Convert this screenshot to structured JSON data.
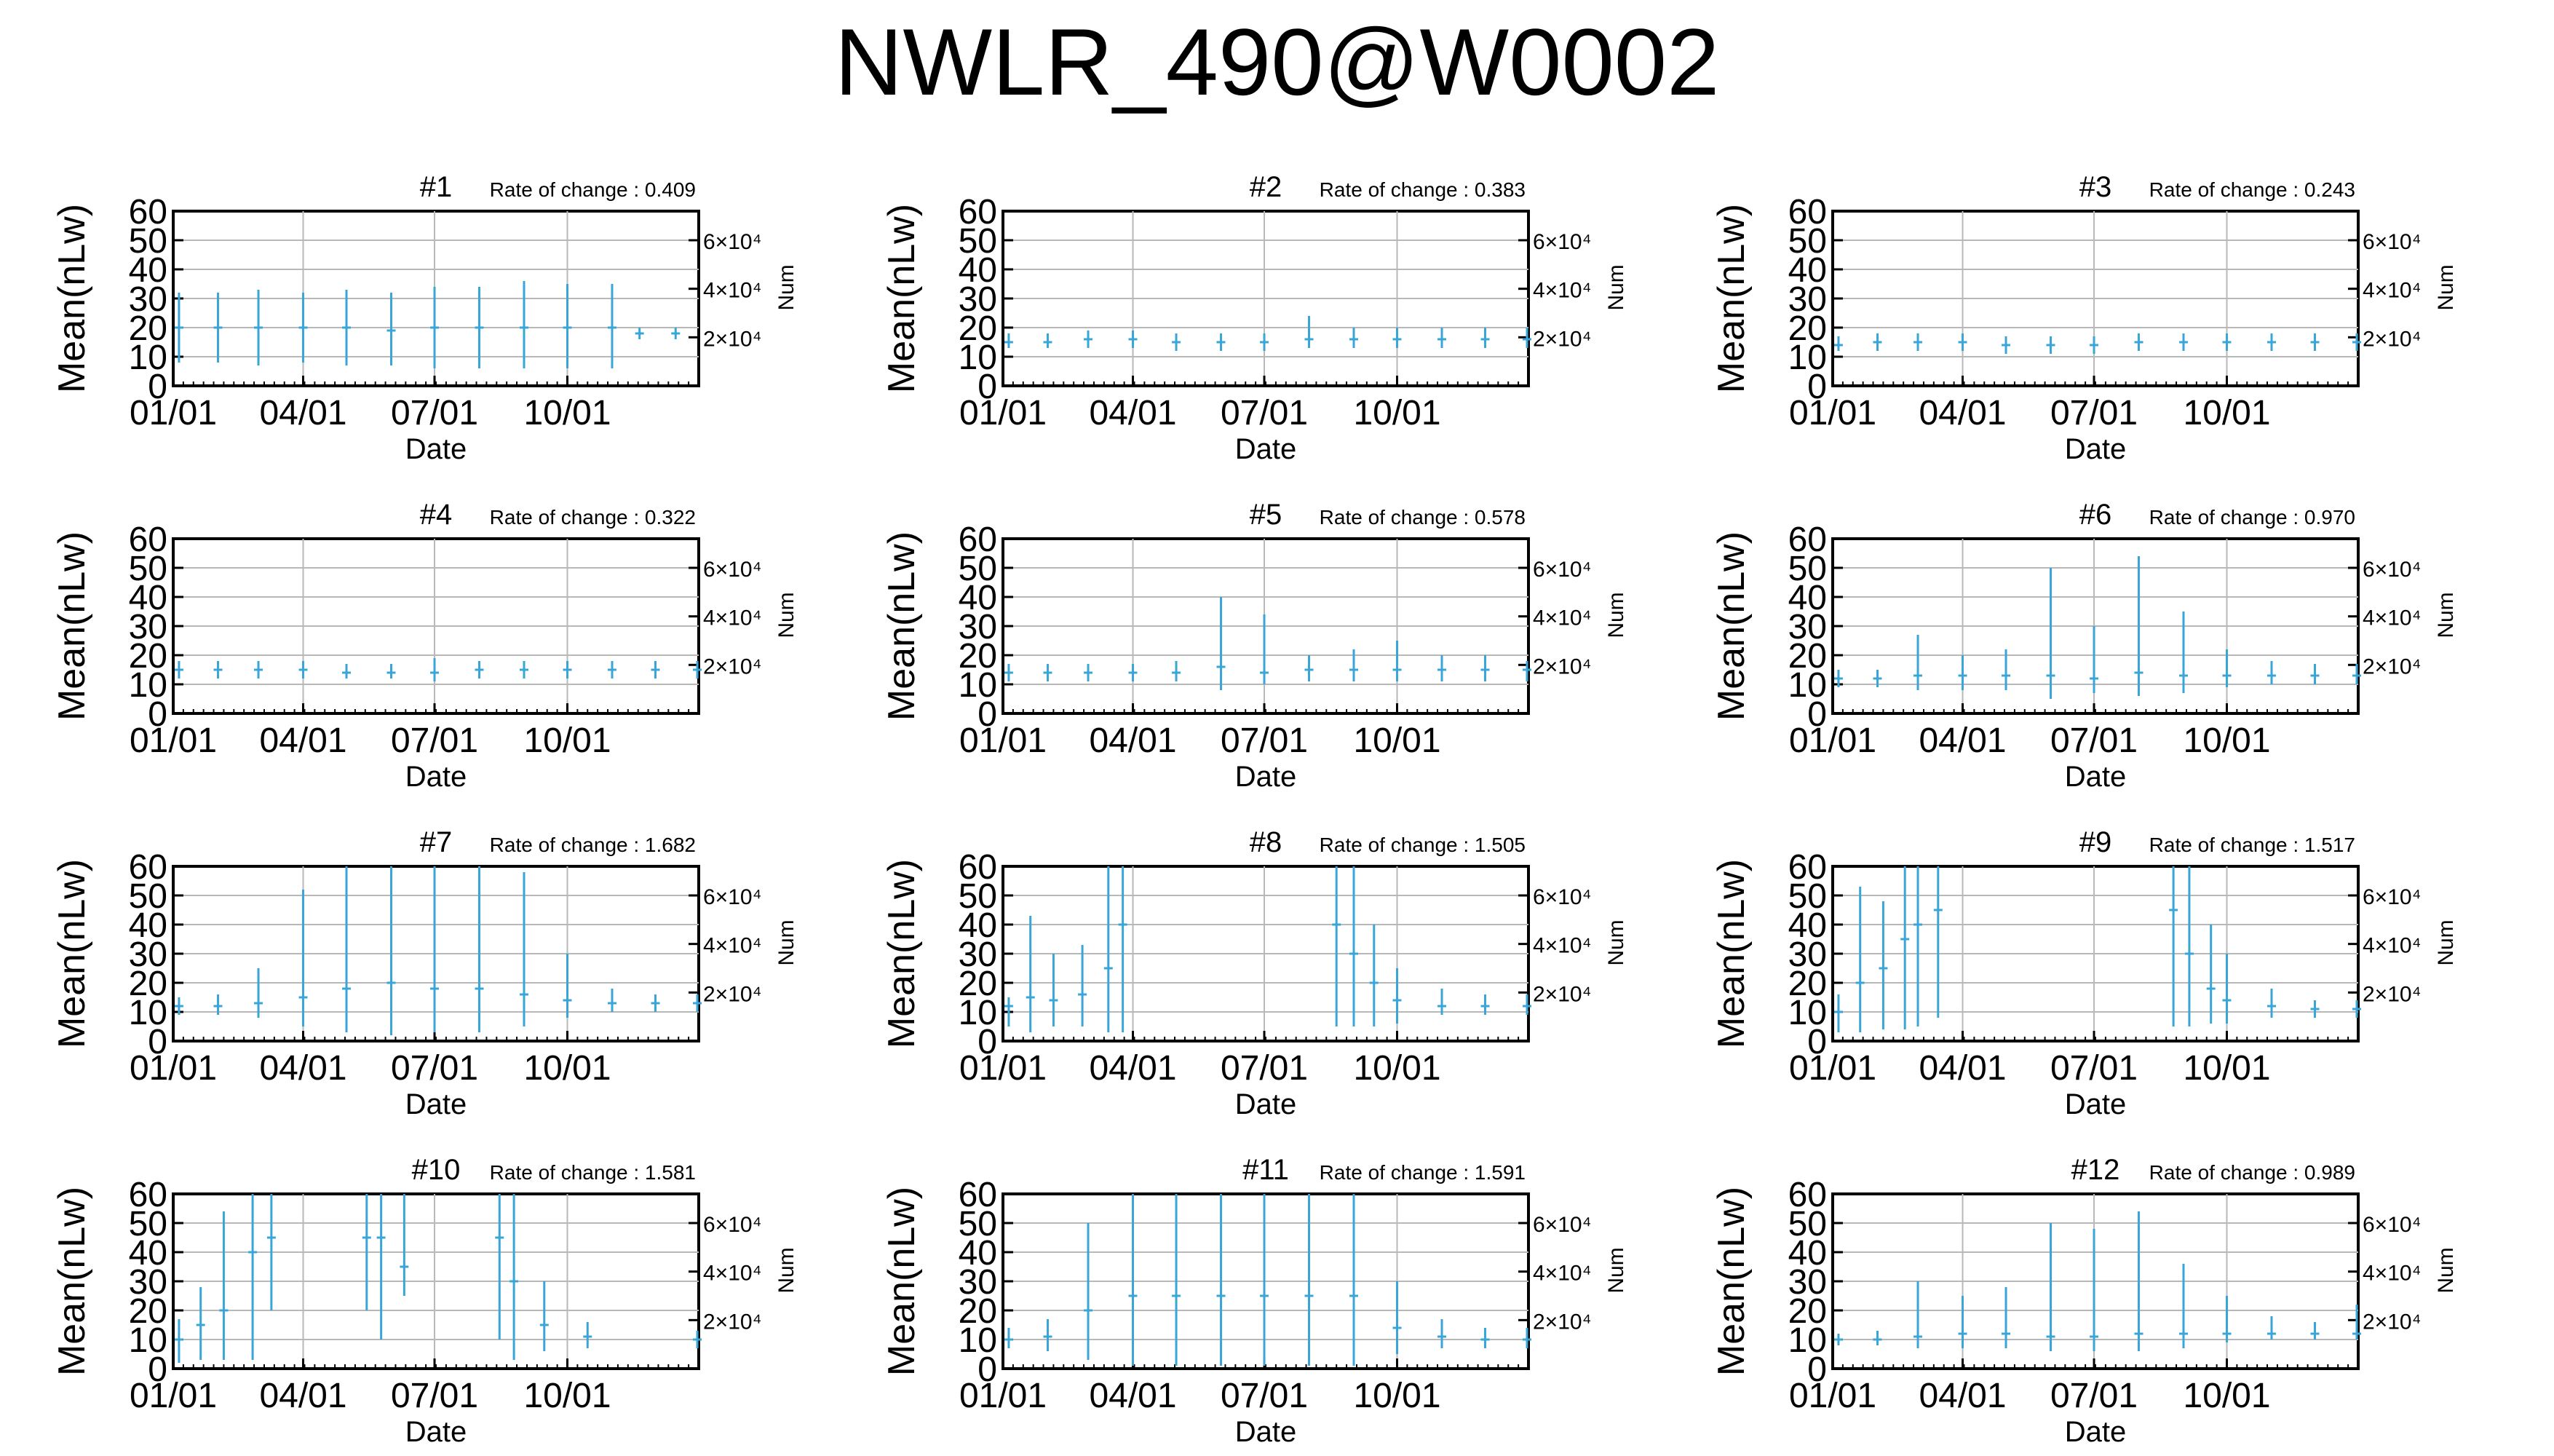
{
  "title": "NWLR_490@W0002",
  "colors": {
    "series": "#3aa6d8",
    "axis": "#000000",
    "grid": "#b8b8b8"
  },
  "common": {
    "ylabel": "Mean(nLw)",
    "y2label": "Num",
    "xlabel": "Date",
    "xticks": [
      "01/01",
      "04/01",
      "07/01",
      "10/01"
    ],
    "yticks": [
      0,
      10,
      20,
      30,
      40,
      50,
      60
    ],
    "y2ticks": [
      "2×10⁴",
      "4×10⁴",
      "6×10⁴"
    ],
    "rate_prefix": "Rate of change : "
  },
  "chart_data": [
    {
      "type": "line",
      "title": "#1",
      "rate": "0.409",
      "ylim": [
        0,
        60
      ],
      "x": [
        "01/05",
        "02/01",
        "03/01",
        "04/01",
        "05/01",
        "06/01",
        "07/01",
        "08/01",
        "09/01",
        "10/01",
        "11/01",
        "11/20",
        "12/15"
      ],
      "mean": [
        20,
        20,
        20,
        20,
        20,
        19,
        20,
        20,
        20,
        20,
        20,
        18,
        18
      ],
      "upper": [
        32,
        32,
        33,
        32,
        33,
        32,
        34,
        34,
        36,
        35,
        35,
        20,
        20
      ],
      "lower": [
        8,
        8,
        7,
        8,
        7,
        7,
        6,
        6,
        6,
        6,
        6,
        16,
        16
      ]
    },
    {
      "type": "line",
      "title": "#2",
      "rate": "0.383",
      "ylim": [
        0,
        60
      ],
      "x": [
        "01/05",
        "02/01",
        "03/01",
        "04/01",
        "05/01",
        "06/01",
        "07/01",
        "08/01",
        "09/01",
        "10/01",
        "11/01",
        "12/01",
        "12/30"
      ],
      "mean": [
        15,
        15,
        16,
        16,
        15,
        15,
        15,
        16,
        16,
        16,
        16,
        16,
        16
      ],
      "upper": [
        18,
        18,
        19,
        19,
        18,
        18,
        18,
        24,
        20,
        20,
        20,
        20,
        20
      ],
      "lower": [
        13,
        13,
        13,
        13,
        12,
        12,
        12,
        13,
        13,
        13,
        13,
        13,
        13
      ]
    },
    {
      "type": "line",
      "title": "#3",
      "rate": "0.243",
      "ylim": [
        0,
        60
      ],
      "x": [
        "01/05",
        "02/01",
        "03/01",
        "04/01",
        "05/01",
        "06/01",
        "07/01",
        "08/01",
        "09/01",
        "10/01",
        "11/01",
        "12/01",
        "12/30"
      ],
      "mean": [
        14,
        15,
        15,
        15,
        14,
        14,
        14,
        15,
        15,
        15,
        15,
        15,
        15
      ],
      "upper": [
        17,
        18,
        18,
        18,
        17,
        17,
        17,
        18,
        18,
        18,
        18,
        18,
        18
      ],
      "lower": [
        12,
        12,
        12,
        12,
        11,
        11,
        11,
        12,
        12,
        12,
        12,
        12,
        12
      ]
    },
    {
      "type": "line",
      "title": "#4",
      "rate": "0.322",
      "ylim": [
        0,
        60
      ],
      "x": [
        "01/05",
        "02/01",
        "03/01",
        "04/01",
        "05/01",
        "06/01",
        "07/01",
        "08/01",
        "09/01",
        "10/01",
        "11/01",
        "12/01",
        "12/30"
      ],
      "mean": [
        15,
        15,
        15,
        15,
        14,
        14,
        14,
        15,
        15,
        15,
        15,
        15,
        15
      ],
      "upper": [
        18,
        18,
        18,
        18,
        17,
        17,
        19,
        18,
        18,
        18,
        18,
        18,
        18
      ],
      "lower": [
        12,
        12,
        12,
        12,
        12,
        12,
        11,
        12,
        12,
        12,
        12,
        12,
        12
      ]
    },
    {
      "type": "line",
      "title": "#5",
      "rate": "0.578",
      "ylim": [
        0,
        60
      ],
      "x": [
        "01/05",
        "02/01",
        "03/01",
        "04/01",
        "05/01",
        "06/01",
        "07/01",
        "08/01",
        "09/01",
        "10/01",
        "11/01",
        "12/01",
        "12/30"
      ],
      "mean": [
        14,
        14,
        14,
        14,
        14,
        16,
        14,
        15,
        15,
        15,
        15,
        15,
        15
      ],
      "upper": [
        17,
        17,
        17,
        17,
        18,
        40,
        34,
        20,
        22,
        25,
        20,
        20,
        18
      ],
      "lower": [
        11,
        11,
        11,
        11,
        11,
        8,
        10,
        11,
        11,
        11,
        11,
        11,
        11
      ]
    },
    {
      "type": "line",
      "title": "#6",
      "rate": "0.970",
      "ylim": [
        0,
        60
      ],
      "x": [
        "01/05",
        "02/01",
        "03/01",
        "04/01",
        "05/01",
        "06/01",
        "07/01",
        "08/01",
        "09/01",
        "10/01",
        "11/01",
        "12/01",
        "12/30"
      ],
      "mean": [
        12,
        12,
        13,
        13,
        13,
        13,
        12,
        14,
        13,
        13,
        13,
        13,
        13
      ],
      "upper": [
        15,
        15,
        27,
        20,
        22,
        50,
        30,
        54,
        35,
        22,
        18,
        17,
        17
      ],
      "lower": [
        9,
        9,
        8,
        8,
        8,
        5,
        7,
        6,
        7,
        9,
        10,
        10,
        10
      ]
    },
    {
      "type": "line",
      "title": "#7",
      "rate": "1.682",
      "ylim": [
        0,
        60
      ],
      "x": [
        "01/05",
        "02/01",
        "03/01",
        "04/01",
        "05/01",
        "06/01",
        "07/01",
        "08/01",
        "09/01",
        "10/01",
        "11/01",
        "12/01",
        "12/30"
      ],
      "mean": [
        12,
        12,
        13,
        15,
        18,
        20,
        18,
        18,
        16,
        14,
        13,
        13,
        13
      ],
      "upper": [
        15,
        16,
        25,
        52,
        60,
        60,
        60,
        60,
        58,
        30,
        18,
        16,
        16
      ],
      "lower": [
        9,
        9,
        8,
        5,
        3,
        2,
        3,
        3,
        5,
        8,
        10,
        10,
        10
      ]
    },
    {
      "type": "line",
      "title": "#8",
      "rate": "1.505",
      "ylim": [
        0,
        60
      ],
      "x": [
        "01/05",
        "01/20",
        "02/05",
        "02/25",
        "03/15",
        "03/25",
        "08/20",
        "09/01",
        "09/15",
        "10/01",
        "11/01",
        "12/01",
        "12/30"
      ],
      "mean": [
        12,
        15,
        14,
        16,
        25,
        40,
        40,
        30,
        20,
        14,
        12,
        12,
        12
      ],
      "upper": [
        15,
        43,
        30,
        33,
        60,
        60,
        60,
        60,
        40,
        25,
        18,
        16,
        16
      ],
      "lower": [
        5,
        3,
        5,
        5,
        3,
        3,
        5,
        5,
        5,
        6,
        9,
        9,
        9
      ]
    },
    {
      "type": "line",
      "title": "#9",
      "rate": "1.517",
      "ylim": [
        0,
        60
      ],
      "x": [
        "01/05",
        "01/20",
        "02/05",
        "02/20",
        "03/01",
        "03/15",
        "08/25",
        "09/05",
        "09/20",
        "10/01",
        "11/01",
        "12/01",
        "12/30"
      ],
      "mean": [
        10,
        20,
        25,
        35,
        40,
        45,
        45,
        30,
        18,
        14,
        12,
        11,
        11
      ],
      "upper": [
        16,
        53,
        48,
        60,
        60,
        60,
        60,
        60,
        40,
        30,
        18,
        14,
        14
      ],
      "lower": [
        3,
        3,
        4,
        4,
        5,
        8,
        5,
        5,
        6,
        6,
        8,
        8,
        8
      ]
    },
    {
      "type": "line",
      "title": "#10",
      "rate": "1.581",
      "ylim": [
        0,
        60
      ],
      "x": [
        "01/05",
        "01/20",
        "02/05",
        "02/25",
        "03/10",
        "05/15",
        "05/25",
        "06/10",
        "08/15",
        "08/25",
        "09/15",
        "10/15",
        "12/30"
      ],
      "mean": [
        10,
        15,
        20,
        40,
        45,
        45,
        45,
        35,
        45,
        30,
        15,
        11,
        10
      ],
      "upper": [
        17,
        28,
        54,
        60,
        60,
        60,
        60,
        60,
        60,
        60,
        30,
        16,
        13
      ],
      "lower": [
        2,
        3,
        3,
        3,
        20,
        20,
        10,
        25,
        10,
        3,
        6,
        7,
        7
      ]
    },
    {
      "type": "line",
      "title": "#11",
      "rate": "1.591",
      "ylim": [
        0,
        60
      ],
      "x": [
        "01/05",
        "02/01",
        "03/01",
        "04/01",
        "05/01",
        "06/01",
        "07/01",
        "08/01",
        "09/01",
        "10/01",
        "11/01",
        "12/01",
        "12/30"
      ],
      "mean": [
        10,
        11,
        20,
        25,
        25,
        25,
        25,
        25,
        25,
        14,
        11,
        10,
        10
      ],
      "upper": [
        14,
        17,
        50,
        60,
        60,
        60,
        60,
        60,
        60,
        30,
        17,
        14,
        14
      ],
      "lower": [
        7,
        6,
        3,
        1,
        1,
        1,
        1,
        1,
        1,
        5,
        7,
        7,
        7
      ]
    },
    {
      "type": "line",
      "title": "#12",
      "rate": "0.989",
      "ylim": [
        0,
        60
      ],
      "x": [
        "01/05",
        "02/01",
        "03/01",
        "04/01",
        "05/01",
        "06/01",
        "07/01",
        "08/01",
        "09/01",
        "10/01",
        "11/01",
        "12/01",
        "12/30"
      ],
      "mean": [
        10,
        10,
        11,
        12,
        12,
        11,
        11,
        12,
        12,
        12,
        12,
        12,
        12
      ],
      "upper": [
        12,
        13,
        30,
        25,
        28,
        50,
        48,
        54,
        36,
        25,
        18,
        16,
        22
      ],
      "lower": [
        8,
        8,
        7,
        7,
        7,
        6,
        6,
        6,
        7,
        9,
        10,
        10,
        10
      ]
    }
  ]
}
